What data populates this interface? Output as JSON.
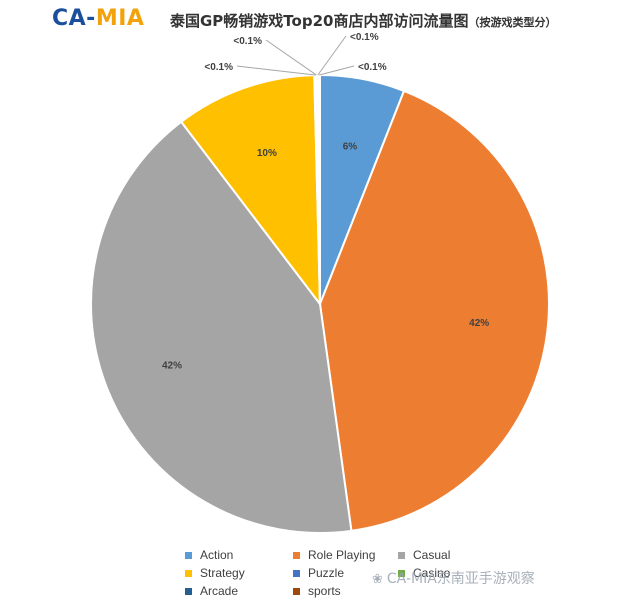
{
  "header": {
    "logo_part1": "CA-",
    "logo_part2": "MIA",
    "title_main": "泰国GP畅销游戏Top20商店内部访问流量图",
    "title_sub": "（按游戏类型分）"
  },
  "chart_data": {
    "type": "pie",
    "title": "泰国GP畅销游戏Top20商店内部访问流量图（按游戏类型分）",
    "slices": [
      {
        "name": "Action",
        "value": 6,
        "label": "6%",
        "color": "#5b9bd5"
      },
      {
        "name": "Role Playing",
        "value": 42,
        "label": "42%",
        "color": "#ed7d31"
      },
      {
        "name": "Casual",
        "value": 42,
        "label": "42%",
        "color": "#a5a5a5"
      },
      {
        "name": "Strategy",
        "value": 10,
        "label": "10%",
        "color": "#ffc000"
      },
      {
        "name": "Puzzle",
        "value": 0.1,
        "label": "<0.1%",
        "color": "#4472c4"
      },
      {
        "name": "Casino",
        "value": 0.1,
        "label": "<0.1%",
        "color": "#70ad47"
      },
      {
        "name": "Arcade",
        "value": 0.1,
        "label": "<0.1%",
        "color": "#255e91"
      },
      {
        "name": "sports",
        "value": 0.1,
        "label": "<0.1%",
        "color": "#9e480e"
      }
    ],
    "legend_position": "bottom"
  },
  "watermark": {
    "text": "CA-MIA东南亚手游观察",
    "icon": "wechat-icon"
  }
}
